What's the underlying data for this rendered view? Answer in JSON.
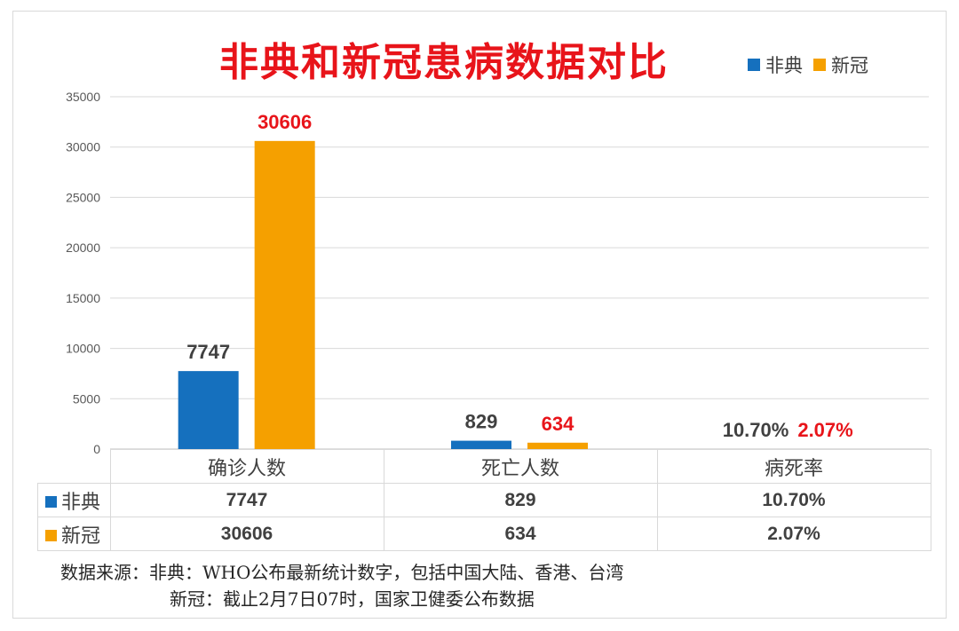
{
  "title": "非典和新冠患病数据对比",
  "colors": {
    "sars": "#1570be",
    "covid": "#f5a000",
    "covid_label": "#e8141a",
    "sars_label": "#404040"
  },
  "legend": [
    {
      "name": "非典",
      "color": "#1570be"
    },
    {
      "name": "新冠",
      "color": "#f5a000"
    }
  ],
  "chart_data": {
    "type": "bar",
    "title": "非典和新冠患病数据对比",
    "categories": [
      "确诊人数",
      "死亡人数",
      "病死率"
    ],
    "ylim": [
      0,
      35000
    ],
    "yticks": [
      "0",
      "5000",
      "10000",
      "15000",
      "20000",
      "25000",
      "30000",
      "35000"
    ],
    "grid": true,
    "legend_position": "top-right",
    "series": [
      {
        "name": "非典",
        "values": [
          7747,
          829,
          0.107
        ],
        "labels": [
          "7747",
          "829",
          "10.70%"
        ]
      },
      {
        "name": "新冠",
        "values": [
          30606,
          634,
          0.0207
        ],
        "labels": [
          "30606",
          "634",
          "2.07%"
        ]
      }
    ]
  },
  "table": {
    "headers": [
      "确诊人数",
      "死亡人数",
      "病死率"
    ],
    "rows": [
      {
        "name": "非典",
        "cells": [
          "7747",
          "829",
          "10.70%"
        ]
      },
      {
        "name": "新冠",
        "cells": [
          "30606",
          "634",
          "2.07%"
        ]
      }
    ]
  },
  "source": {
    "line1": "数据来源：非典：WHO公布最新统计数字，包括中国大陆、香港、台湾",
    "line2": "新冠：截止2月7日07时，国家卫健委公布数据"
  }
}
